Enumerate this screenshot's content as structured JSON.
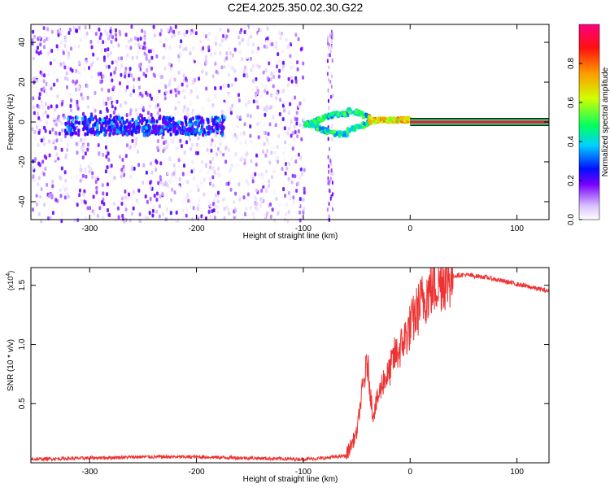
{
  "title": "C2E4.2025.350.02.30.G22",
  "chart_data": [
    {
      "type": "heatmap",
      "xlabel": "Height of straight line (km)",
      "ylabel": "Frequency (Hz)",
      "xlim": [
        -355,
        130
      ],
      "ylim": [
        -49,
        49
      ],
      "xticks": [
        -300,
        -200,
        -100,
        0,
        100
      ],
      "yticks": [
        -40,
        -20,
        0,
        20,
        40
      ],
      "colorbar": {
        "label": "Normalized spectral amplitude",
        "range": [
          0,
          1
        ],
        "ticks": [
          0.0,
          0.2,
          0.4,
          0.6,
          0.8
        ],
        "tick_labels": [
          "0.0",
          "0.2",
          "0.4",
          "0.6",
          "0.8"
        ]
      },
      "features": {
        "noise_region_x": [
          -355,
          -100
        ],
        "band_center_hz": 0,
        "band_half_width_hz": 1,
        "band_start_x": 0,
        "band_amplitude": 0.95,
        "loop_region_x": [
          -100,
          0
        ]
      }
    },
    {
      "type": "line",
      "xlabel": "Height of straight line (km)",
      "ylabel": "SNR (10 * v/v)",
      "yscale_label": "(x10",
      "yscale_exp": "4",
      "xlim": [
        -355,
        130
      ],
      "ylim": [
        0.0,
        1.65
      ],
      "xticks": [
        -300,
        -200,
        -100,
        0,
        100
      ],
      "yticks": [
        0.5,
        1.0,
        1.5
      ],
      "ytick_labels": [
        "0.5",
        "1.0",
        "1.5"
      ],
      "series": [
        {
          "color": "#ee3333",
          "x": [
            -355,
            -300,
            -250,
            -200,
            -150,
            -100,
            -80,
            -60,
            -50,
            -45,
            -40,
            -35,
            -30,
            -25,
            -20,
            -15,
            -10,
            -5,
            0,
            5,
            10,
            15,
            20,
            30,
            40,
            50,
            60,
            70,
            80,
            90,
            100,
            110,
            120,
            130
          ],
          "y": [
            0.03,
            0.04,
            0.05,
            0.05,
            0.04,
            0.03,
            0.04,
            0.06,
            0.25,
            0.6,
            0.85,
            0.4,
            0.55,
            0.7,
            0.75,
            0.9,
            0.95,
            1.05,
            1.15,
            1.25,
            1.35,
            1.42,
            1.48,
            1.55,
            1.58,
            1.59,
            1.58,
            1.57,
            1.55,
            1.53,
            1.51,
            1.49,
            1.47,
            1.45
          ]
        }
      ]
    }
  ]
}
